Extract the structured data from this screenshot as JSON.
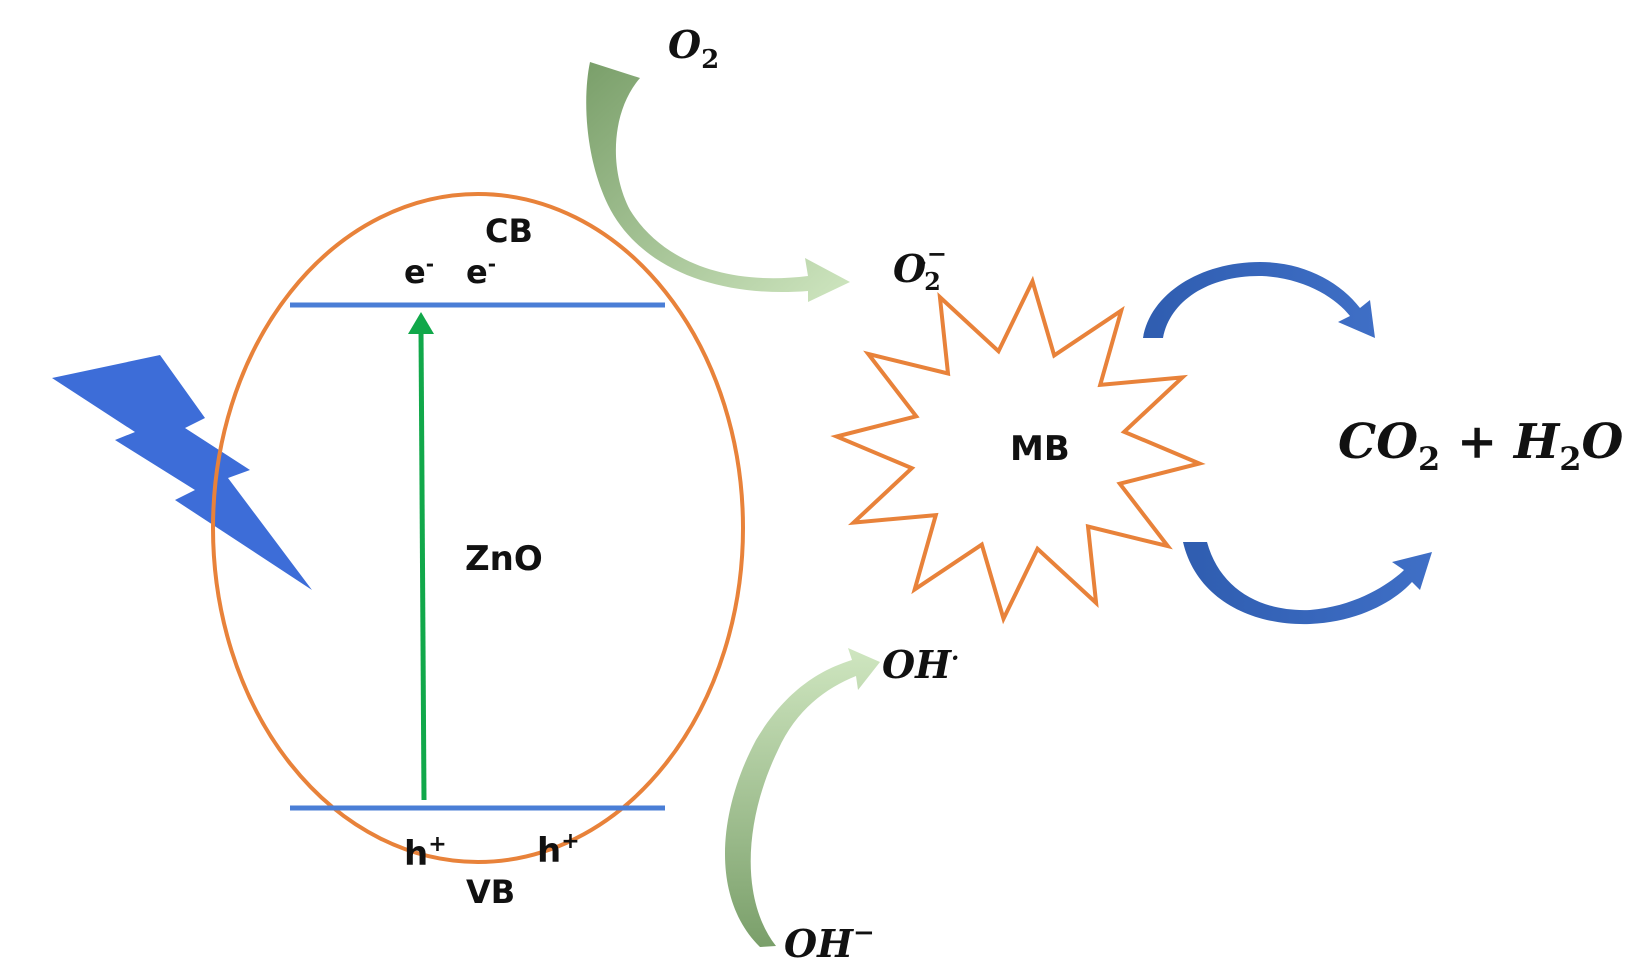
{
  "colors": {
    "ellipse": "#E8823A",
    "band": "#4A7ED6",
    "excitation_arrow": "#11A84A",
    "light_bolt": "#3D6DD8",
    "green_arrow_dark": "#7A9F6A",
    "green_arrow_light": "#CFE6C0",
    "blue_arrow": "#3F6FC6",
    "star_outline": "#E8823A"
  },
  "icons": {
    "light": "lightning-bolt-icon"
  },
  "labels": {
    "cb": "CB",
    "vb": "VB",
    "zno": "ZnO",
    "mb": "MB",
    "electron": "e",
    "electron_sup": "-",
    "hole": "h",
    "hole_sup": "+",
    "o2_base": "O",
    "o2_sub": "2",
    "superoxide_base": "O",
    "superoxide_sub": "2",
    "superoxide_sup": "−",
    "superoxide_dot": "·",
    "oh_radical_base": "OH",
    "oh_radical_sup": "·",
    "oh_minus_base": "OH",
    "oh_minus_sup": "−",
    "products_co": "CO",
    "products_co_sub": "2",
    "products_plus": " + H",
    "products_h_sub": "2",
    "products_o": "O"
  }
}
